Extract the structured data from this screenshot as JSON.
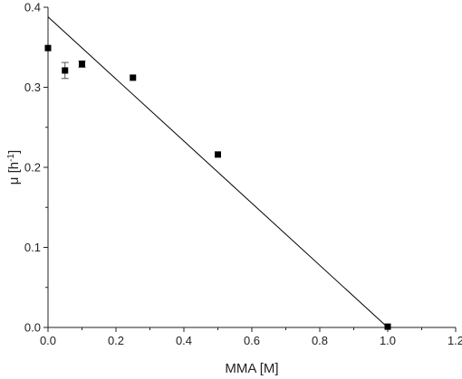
{
  "chart_data": {
    "type": "scatter",
    "xlabel": "MMA [M]",
    "ylabel": {
      "base": "μ [h",
      "sup": "-1",
      "close": "]"
    },
    "xlim": [
      0.0,
      1.2
    ],
    "ylim": [
      0.0,
      0.4
    ],
    "xticks": [
      "0.0",
      "0.2",
      "0.4",
      "0.6",
      "0.8",
      "1.0",
      "1.2"
    ],
    "yticks": [
      "0.0",
      "0.1",
      "0.2",
      "0.3",
      "0.4"
    ],
    "points": [
      {
        "x": 0.0,
        "y": 0.349,
        "err": 0.0
      },
      {
        "x": 0.05,
        "y": 0.321,
        "err": 0.01
      },
      {
        "x": 0.1,
        "y": 0.329,
        "err": 0.004
      },
      {
        "x": 0.25,
        "y": 0.312,
        "err": 0.0
      },
      {
        "x": 0.5,
        "y": 0.216,
        "err": 0.0
      },
      {
        "x": 1.0,
        "y": 0.001,
        "err": 0.0
      }
    ],
    "fit_line": {
      "x": [
        0.0,
        1.0
      ],
      "y": [
        0.388,
        0.0
      ]
    },
    "grid": false,
    "colors": {
      "marker": "#000000",
      "line": "#000000",
      "axis": "#222222"
    }
  }
}
